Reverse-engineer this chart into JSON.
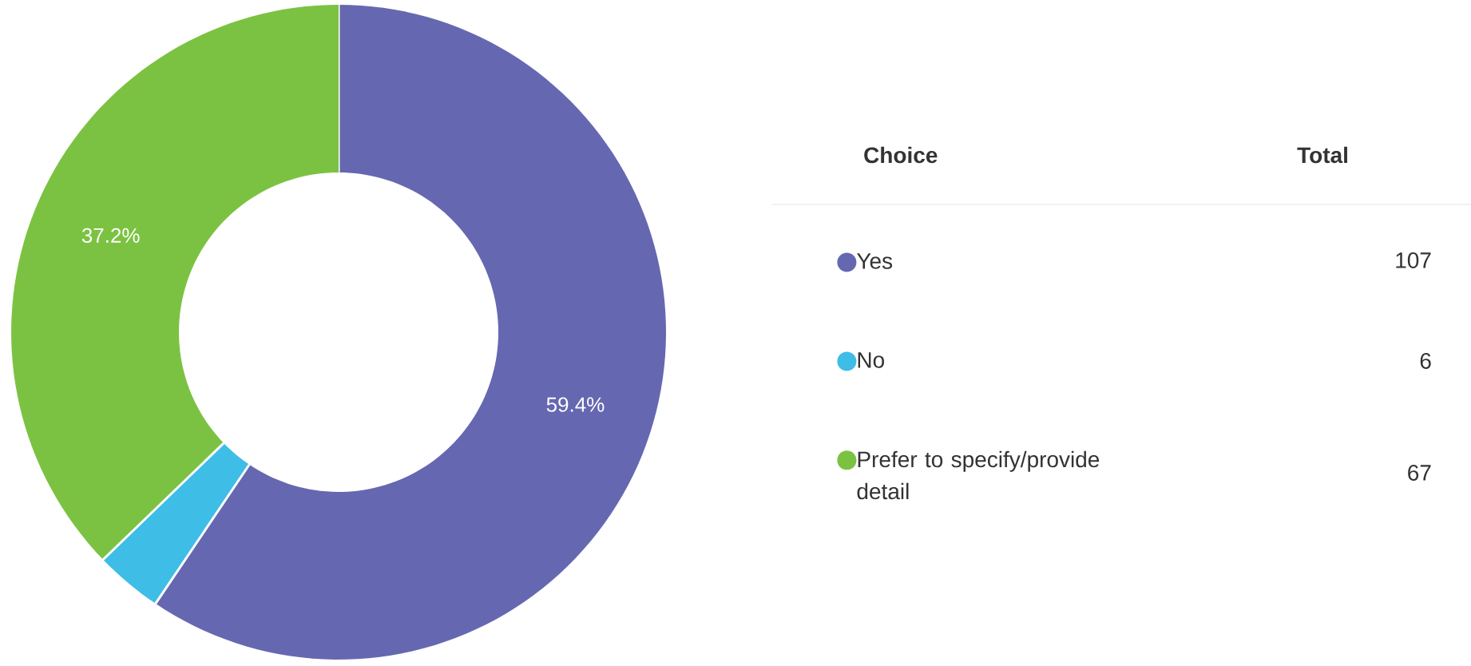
{
  "chart_data": {
    "type": "donut",
    "categories": [
      "Yes",
      "No",
      "Prefer to specify/provide detail"
    ],
    "values": [
      107,
      6,
      67
    ],
    "colors": [
      "#6568b0",
      "#3ebde6",
      "#7cc242"
    ],
    "data_labels": true,
    "legend": "right",
    "legend_title": "Choice",
    "annotations": [
      "Total",
      {
        "text": "59.4%",
        "x": "Yes"
      },
      {
        "text": "37.2%",
        "x": "Prefer to specify/provide detail"
      }
    ]
  }
}
